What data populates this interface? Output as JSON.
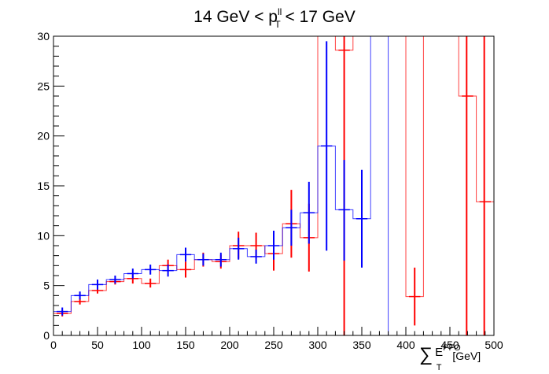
{
  "chart_data": {
    "type": "histogram",
    "title": {
      "base": "14 GeV < p",
      "sup": "ll",
      "sub": "T",
      "tail": " < 17 GeV"
    },
    "xlabel": {
      "sigma": "∑",
      "main": "E",
      "sup": "PFO",
      "sub": "T",
      "unit": " [GeV]"
    },
    "ylabel": "",
    "xlim": [
      0,
      500
    ],
    "ylim": [
      0,
      30
    ],
    "x_ticks": [
      0,
      50,
      100,
      150,
      200,
      250,
      300,
      350,
      400,
      450,
      500
    ],
    "y_ticks": [
      0,
      5,
      10,
      15,
      20,
      25,
      30
    ],
    "grid": false,
    "legend": "none",
    "bin_edges": [
      0,
      20,
      40,
      60,
      80,
      100,
      120,
      140,
      160,
      180,
      200,
      220,
      240,
      260,
      280,
      300,
      320,
      340,
      360,
      380,
      400,
      420,
      440,
      460,
      480,
      500
    ],
    "series": [
      {
        "color": "#ff0000",
        "values": [
          2.2,
          3.4,
          4.5,
          5.4,
          5.7,
          5.2,
          7.0,
          6.6,
          7.6,
          7.4,
          9.0,
          9.0,
          8.2,
          11.2,
          9.8,
          30.0,
          28.6,
          30.0,
          30.0,
          30.0,
          3.9,
          30.0,
          30.0,
          24.0,
          13.4
        ],
        "err_low": [
          1.9,
          3.1,
          4.2,
          5.1,
          5.2,
          4.8,
          6.4,
          5.8,
          6.9,
          6.7,
          7.7,
          7.7,
          6.5,
          7.8,
          6.4,
          0.0,
          0.0,
          0.0,
          0.0,
          0.0,
          1.0,
          0.0,
          0.0,
          0.0,
          0.0
        ],
        "err_high": [
          2.5,
          3.7,
          4.9,
          5.7,
          6.2,
          5.7,
          7.6,
          7.4,
          8.3,
          8.1,
          10.4,
          10.3,
          9.9,
          14.6,
          13.2,
          30.0,
          30.0,
          30.0,
          30.0,
          30.0,
          6.8,
          30.0,
          30.0,
          30.0,
          30.0
        ],
        "draw_err": [
          true,
          true,
          true,
          true,
          true,
          true,
          true,
          true,
          true,
          true,
          true,
          true,
          true,
          true,
          true,
          false,
          true,
          false,
          false,
          false,
          true,
          false,
          false,
          true,
          true
        ],
        "err_x_override": {
          "23": 469,
          "24": 489
        }
      },
      {
        "color": "#0000ff",
        "values": [
          2.4,
          4.0,
          5.1,
          5.6,
          6.2,
          6.6,
          6.5,
          8.1,
          7.6,
          7.6,
          8.7,
          7.9,
          9.0,
          10.8,
          12.3,
          19.0,
          12.6,
          11.7,
          30.0,
          null,
          null,
          null,
          null,
          null,
          null
        ],
        "err_low": [
          2.0,
          3.6,
          4.6,
          5.2,
          5.7,
          6.1,
          5.9,
          7.4,
          7.0,
          6.9,
          7.6,
          7.2,
          7.6,
          9.0,
          9.2,
          8.5,
          7.5,
          6.8,
          30.0,
          0,
          0,
          0,
          0,
          0,
          0
        ],
        "err_high": [
          2.8,
          4.4,
          5.6,
          6.0,
          6.7,
          7.1,
          7.1,
          8.8,
          8.2,
          8.3,
          9.8,
          8.6,
          10.5,
          12.6,
          15.4,
          29.5,
          17.6,
          16.6,
          30.0,
          0,
          0,
          0,
          0,
          0,
          0
        ],
        "draw_err": [
          true,
          true,
          true,
          true,
          true,
          true,
          true,
          true,
          true,
          true,
          true,
          true,
          true,
          true,
          true,
          true,
          true,
          true,
          false,
          false,
          false,
          false,
          false,
          false,
          false
        ]
      }
    ]
  }
}
